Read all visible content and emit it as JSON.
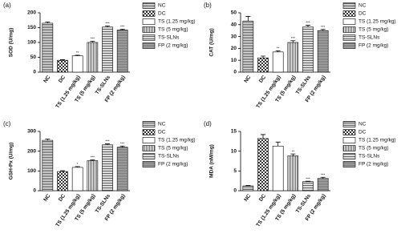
{
  "chart_data": [
    {
      "type": "bar",
      "panel": "(a)",
      "y_label": "SOD (U/mg)",
      "categories": [
        "NC",
        "DC",
        "TS (1.25 mg/kg)",
        "TS (5 mg/kg)",
        "TS-SLNs",
        "FP (2 mg/kg)"
      ],
      "values": [
        165,
        40,
        55,
        100,
        152,
        142
      ],
      "errors": [
        4,
        2,
        2,
        4,
        4,
        3
      ],
      "significance": [
        null,
        null,
        "**",
        "***",
        "***",
        "***"
      ],
      "ylim": [
        0,
        200
      ],
      "yticks": [
        0,
        50,
        100,
        150,
        200
      ]
    },
    {
      "type": "bar",
      "panel": "(b)",
      "y_label": "CAT (U/mg)",
      "categories": [
        "NC",
        "DC",
        "TS (1.25 mg/kg)",
        "TS (5 mg/kg)",
        "TS-SLNs",
        "FP (2 mg/kg)"
      ],
      "values": [
        43,
        12,
        17,
        25,
        38,
        35
      ],
      "errors": [
        4,
        1.5,
        1,
        1.5,
        1.5,
        1
      ],
      "significance": [
        null,
        null,
        "**",
        "***",
        "***",
        "***"
      ],
      "ylim": [
        0,
        50
      ],
      "yticks": [
        0,
        10,
        20,
        30,
        40,
        50
      ]
    },
    {
      "type": "bar",
      "panel": "(c)",
      "y_label": "GSH-Px (U/mg)",
      "categories": [
        "NC",
        "DC",
        "TS (1.25 mg/kg)",
        "TS (5 mg/kg)",
        "TS-SLNs",
        "FP (2 mg/kg)"
      ],
      "values": [
        255,
        97,
        118,
        152,
        232,
        220
      ],
      "errors": [
        6,
        4,
        4,
        4,
        5,
        6
      ],
      "significance": [
        null,
        null,
        "*",
        "***",
        "***",
        "***"
      ],
      "ylim": [
        0,
        300
      ],
      "yticks": [
        0,
        100,
        200,
        300
      ]
    },
    {
      "type": "bar",
      "panel": "(d)",
      "y_label": "MDA (nM/mg)",
      "categories": [
        "NC",
        "DC",
        "TS (1.25 mg/kg)",
        "TS (5 mg/kg)",
        "TS-SLNs",
        "FP (2 mg/kg)"
      ],
      "values": [
        1.2,
        13.2,
        11.3,
        8.8,
        2.3,
        3.1
      ],
      "errors": [
        0.1,
        1,
        1,
        0.5,
        0.1,
        0.3
      ],
      "significance": [
        null,
        null,
        null,
        "**",
        "***",
        "***"
      ],
      "ylim": [
        0,
        15
      ],
      "yticks": [
        0,
        5,
        10,
        15
      ]
    }
  ]
}
